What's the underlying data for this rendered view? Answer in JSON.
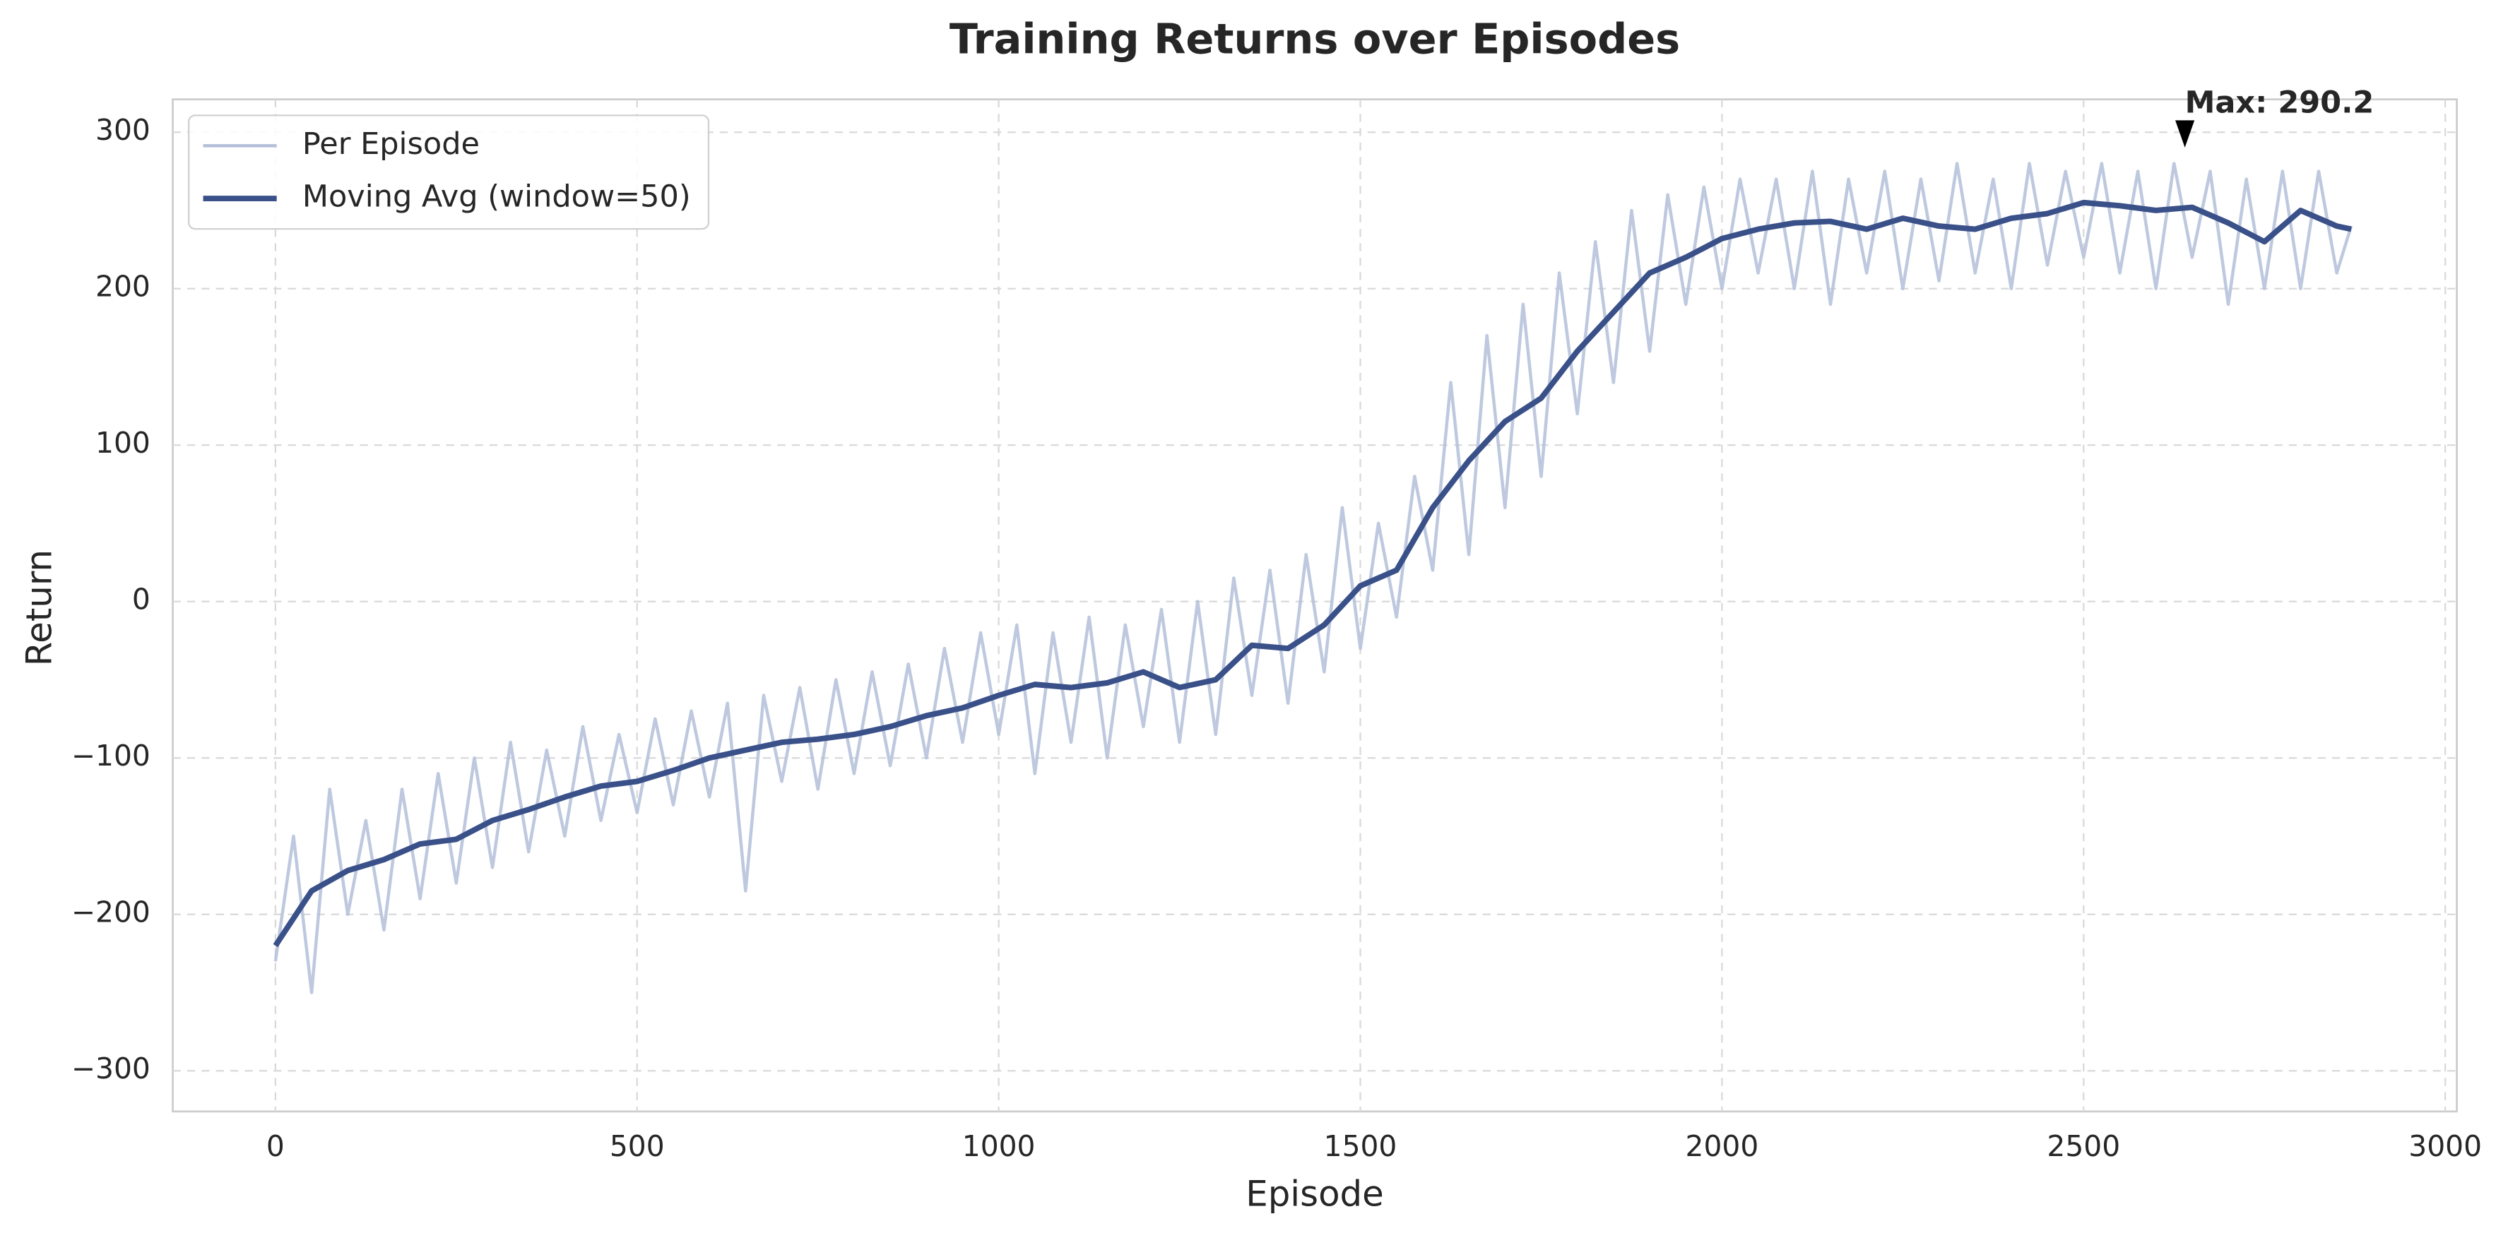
{
  "chart_data": {
    "type": "line",
    "title": "Training Returns over Episodes",
    "x_label": "Episode",
    "y_label": "Return",
    "xlim": [
      -142,
      3016
    ],
    "ylim": [
      -326,
      321
    ],
    "xticks": [
      0,
      500,
      1000,
      1500,
      2000,
      2500,
      3000
    ],
    "yticks": [
      {
        "value": -300,
        "label": "−300"
      },
      {
        "value": -200,
        "label": "−200"
      },
      {
        "value": -100,
        "label": "−100"
      },
      0,
      100,
      200,
      300
    ],
    "grid": true,
    "legend": "upper left",
    "series": [
      {
        "name": "Per Episode",
        "color": "#b3bfd9",
        "x": [
          0,
          25,
          50,
          75,
          100,
          125,
          150,
          175,
          200,
          225,
          250,
          275,
          300,
          325,
          350,
          375,
          400,
          425,
          450,
          475,
          500,
          525,
          550,
          575,
          600,
          625,
          650,
          675,
          700,
          725,
          750,
          775,
          800,
          825,
          850,
          875,
          900,
          925,
          950,
          975,
          1000,
          1025,
          1050,
          1075,
          1100,
          1125,
          1150,
          1175,
          1200,
          1225,
          1250,
          1275,
          1300,
          1325,
          1350,
          1375,
          1400,
          1425,
          1450,
          1475,
          1500,
          1525,
          1550,
          1575,
          1600,
          1625,
          1650,
          1675,
          1700,
          1725,
          1750,
          1775,
          1800,
          1825,
          1850,
          1875,
          1900,
          1925,
          1950,
          1975,
          2000,
          2025,
          2050,
          2075,
          2100,
          2125,
          2150,
          2175,
          2200,
          2225,
          2250,
          2275,
          2300,
          2325,
          2350,
          2375,
          2400,
          2425,
          2450,
          2475,
          2500,
          2525,
          2550,
          2575,
          2600,
          2625,
          2650,
          2675,
          2700,
          2725,
          2750,
          2775,
          2800,
          2825,
          2850,
          2870
        ],
        "values": [
          -230,
          -150,
          -250,
          -120,
          -200,
          -140,
          -210,
          -120,
          -190,
          -110,
          -180,
          -100,
          -170,
          -90,
          -160,
          -95,
          -150,
          -80,
          -140,
          -85,
          -135,
          -75,
          -130,
          -70,
          -125,
          -65,
          -185,
          -60,
          -115,
          -55,
          -120,
          -50,
          -110,
          -45,
          -105,
          -40,
          -100,
          -30,
          -90,
          -20,
          -85,
          -15,
          -110,
          -20,
          -90,
          -10,
          -100,
          -15,
          -80,
          -5,
          -90,
          0,
          -85,
          15,
          -60,
          20,
          -65,
          30,
          -45,
          60,
          -30,
          50,
          -10,
          80,
          20,
          140,
          30,
          170,
          60,
          190,
          80,
          210,
          120,
          230,
          140,
          250,
          160,
          260,
          190,
          265,
          200,
          270,
          210,
          270,
          200,
          275,
          190,
          270,
          210,
          275,
          200,
          270,
          205,
          280,
          210,
          270,
          200,
          280,
          215,
          275,
          220,
          280,
          210,
          275,
          200,
          280,
          220,
          275,
          190,
          270,
          200,
          275,
          200,
          275,
          210,
          240
        ]
      },
      {
        "name": "Moving Avg (window=50)",
        "color": "#3a5089",
        "x": [
          0,
          50,
          100,
          150,
          200,
          250,
          300,
          350,
          400,
          450,
          500,
          550,
          600,
          650,
          700,
          750,
          800,
          850,
          900,
          950,
          1000,
          1050,
          1100,
          1150,
          1200,
          1250,
          1300,
          1350,
          1400,
          1450,
          1500,
          1550,
          1600,
          1650,
          1700,
          1750,
          1800,
          1850,
          1900,
          1950,
          2000,
          2050,
          2100,
          2150,
          2200,
          2250,
          2300,
          2350,
          2400,
          2450,
          2500,
          2550,
          2600,
          2650,
          2700,
          2750,
          2800,
          2850,
          2870
        ],
        "values": [
          -220,
          -185,
          -172,
          -165,
          -155,
          -152,
          -140,
          -133,
          -125,
          -118,
          -115,
          -108,
          -100,
          -95,
          -90,
          -88,
          -85,
          -80,
          -73,
          -68,
          -60,
          -53,
          -55,
          -52,
          -45,
          -55,
          -50,
          -28,
          -30,
          -15,
          10,
          20,
          60,
          90,
          115,
          130,
          160,
          185,
          210,
          220,
          232,
          238,
          242,
          243,
          238,
          245,
          240,
          238,
          245,
          248,
          255,
          253,
          250,
          252,
          242,
          230,
          250,
          240,
          238
        ]
      }
    ],
    "annotations": [
      {
        "text": "Max: 290.2",
        "x": 2640,
        "y": 290.2
      }
    ]
  }
}
